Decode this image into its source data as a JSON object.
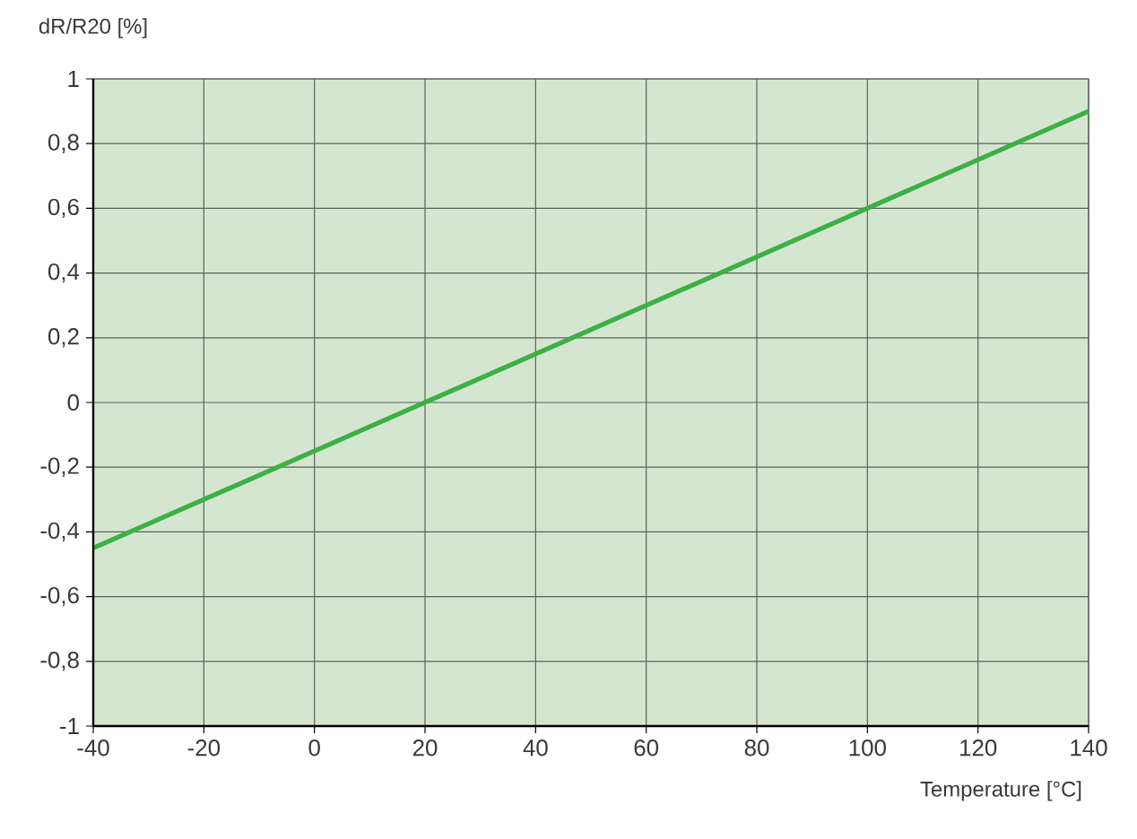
{
  "chart_data": {
    "type": "line",
    "xlabel": "Temperature [°C]",
    "ylabel": "dR/R20 [%]",
    "x": [
      -40,
      20,
      140
    ],
    "series": [
      {
        "color": "#3cb044",
        "values": [
          -0.45,
          0,
          0.9
        ]
      }
    ],
    "xlim": [
      -40,
      140
    ],
    "xticks": [
      -40,
      -20,
      0,
      20,
      40,
      60,
      80,
      100,
      120,
      140
    ],
    "ylim": [
      -1,
      1
    ],
    "yticks": [
      {
        "value": -1,
        "label": "-1"
      },
      {
        "value": -0.8,
        "label": "-0,8"
      },
      {
        "value": -0.6,
        "label": "-0,6"
      },
      {
        "value": -0.4,
        "label": "-0,4"
      },
      {
        "value": -0.2,
        "label": "-0,2"
      },
      {
        "value": 0,
        "label": "0"
      },
      {
        "value": 0.2,
        "label": "0,2"
      },
      {
        "value": 0.4,
        "label": "0,4"
      },
      {
        "value": 0.6,
        "label": "0,6"
      },
      {
        "value": 0.8,
        "label": "0,8"
      },
      {
        "value": 1,
        "label": "1"
      }
    ],
    "grid": true,
    "line_style": "solid"
  }
}
